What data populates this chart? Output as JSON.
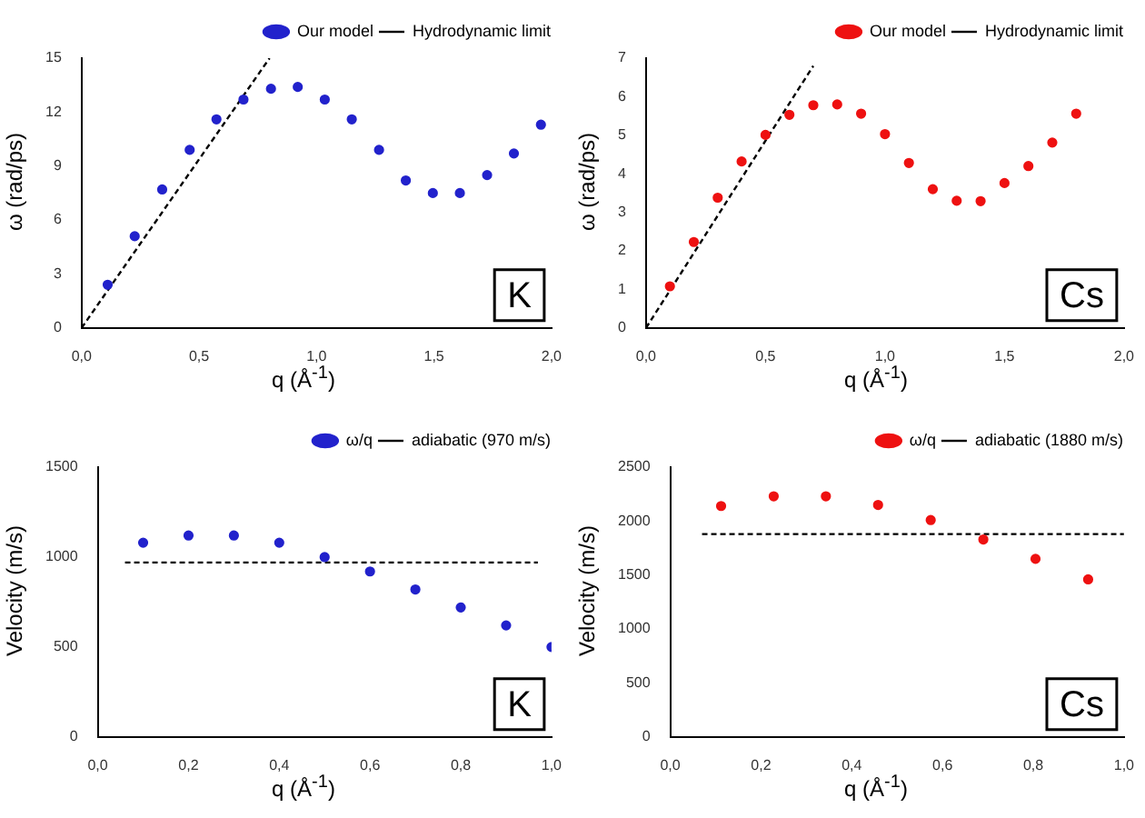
{
  "chart_data": [
    {
      "type": "scatter",
      "xlabel": "q (Å$^{-1}$)",
      "ylabel": "ω (rad/ps)",
      "annotations": [
        "K"
      ],
      "legend": "top right",
      "marker": "circle",
      "xlim": [
        0,
        2
      ],
      "ylim": [
        0,
        15
      ],
      "xticks": [
        {
          "value": 0,
          "label": "0,0"
        },
        {
          "value": 0.5,
          "label": "0,5"
        },
        {
          "value": 1,
          "label": "1,0"
        },
        {
          "value": 1.5,
          "label": "1,5"
        },
        {
          "value": 2,
          "label": "2,0"
        }
      ],
      "yticks": [
        0,
        3,
        6,
        9,
        12,
        15
      ],
      "series": [
        {
          "name": "Our model",
          "color": "#2222cc",
          "x": [
            0.111,
            0.226,
            0.343,
            0.46,
            0.574,
            0.689,
            0.806,
            0.92,
            1.035,
            1.15,
            1.266,
            1.38,
            1.495,
            1.61,
            1.726,
            1.84,
            1.955
          ],
          "values": [
            2.4,
            5.1,
            7.7,
            9.9,
            11.6,
            12.7,
            13.3,
            13.4,
            12.7,
            11.6,
            9.9,
            8.2,
            7.5,
            7.5,
            8.5,
            9.7,
            11.3
          ]
        },
        {
          "name": "Hydrodynamic limit",
          "type": "line",
          "line_style": "dashed",
          "marker": "none",
          "color": "#000000",
          "x": [
            0,
            0.8
          ],
          "values": [
            0,
            15
          ]
        }
      ]
    },
    {
      "type": "scatter",
      "xlabel": "q (Å$^{-1}$)",
      "ylabel": "ω (rad/ps)",
      "annotations": [
        "Cs"
      ],
      "legend": "top right",
      "marker": "circle",
      "xlim": [
        0,
        2
      ],
      "ylim": [
        0,
        7
      ],
      "xticks": [
        {
          "value": 0,
          "label": "0,0"
        },
        {
          "value": 0.5,
          "label": "0,5"
        },
        {
          "value": 1,
          "label": "1,0"
        },
        {
          "value": 1.5,
          "label": "1,5"
        },
        {
          "value": 2,
          "label": "2,0"
        }
      ],
      "yticks": [
        0,
        1,
        2,
        3,
        4,
        5,
        6,
        7
      ],
      "series": [
        {
          "name": "Our model",
          "color": "#ee1111",
          "x": [
            0.1,
            0.2,
            0.3,
            0.4,
            0.5,
            0.6,
            0.7,
            0.8,
            0.9,
            1.0,
            1.1,
            1.2,
            1.3,
            1.4,
            1.5,
            1.6,
            1.7,
            1.8
          ],
          "values": [
            1.08,
            2.23,
            3.38,
            4.32,
            5.01,
            5.53,
            5.78,
            5.8,
            5.56,
            5.03,
            4.28,
            3.6,
            3.3,
            3.29,
            3.76,
            4.2,
            4.81,
            5.56
          ]
        },
        {
          "name": "Hydrodynamic limit",
          "type": "line",
          "line_style": "dashed",
          "marker": "none",
          "color": "#000000",
          "x": [
            0,
            0.7
          ],
          "values": [
            0,
            6.8
          ]
        }
      ]
    },
    {
      "type": "scatter",
      "xlabel": "q (Å$^{-1}$)",
      "ylabel": "Velocity (m/s)",
      "annotations": [
        "K"
      ],
      "legend": "top right",
      "marker": "circle",
      "xlim": [
        0,
        1
      ],
      "ylim": [
        0,
        1500
      ],
      "xticks": [
        {
          "value": 0,
          "label": "0,0"
        },
        {
          "value": 0.2,
          "label": "0,2"
        },
        {
          "value": 0.4,
          "label": "0,4"
        },
        {
          "value": 0.6,
          "label": "0,6"
        },
        {
          "value": 0.8,
          "label": "0,8"
        },
        {
          "value": 1,
          "label": "1,0"
        }
      ],
      "yticks": [
        0,
        500,
        1000,
        1500
      ],
      "series": [
        {
          "name": "ω/q",
          "color": "#2222cc",
          "x": [
            0.1,
            0.2,
            0.3,
            0.4,
            0.5,
            0.6,
            0.7,
            0.8,
            0.9,
            1.0
          ],
          "values": [
            1080,
            1120,
            1120,
            1080,
            1000,
            920,
            820,
            720,
            620,
            500
          ]
        },
        {
          "name": "adiabatic (970 m/s)",
          "type": "line",
          "line_style": "dashed",
          "marker": "none",
          "color": "#000000",
          "x": [
            0.06,
            0.97
          ],
          "values": [
            970,
            970
          ]
        }
      ]
    },
    {
      "type": "scatter",
      "xlabel": "q (Å$^{-1}$)",
      "ylabel": "Velocity (m/s)",
      "annotations": [
        "Cs"
      ],
      "legend": "top right",
      "marker": "circle",
      "xlim": [
        0,
        1
      ],
      "ylim": [
        0,
        2500
      ],
      "xticks": [
        {
          "value": 0,
          "label": "0,0"
        },
        {
          "value": 0.2,
          "label": "0,2"
        },
        {
          "value": 0.4,
          "label": "0,4"
        },
        {
          "value": 0.6,
          "label": "0,6"
        },
        {
          "value": 0.8,
          "label": "0,8"
        },
        {
          "value": 1,
          "label": "1,0"
        }
      ],
      "yticks": [
        0,
        500,
        1000,
        1500,
        2000,
        2500
      ],
      "series": [
        {
          "name": "ω/q",
          "color": "#ee1111",
          "x": [
            0.112,
            0.228,
            0.343,
            0.458,
            0.574,
            0.69,
            0.805,
            0.921
          ],
          "values": [
            2140,
            2230,
            2230,
            2150,
            2010,
            1830,
            1650,
            1460
          ]
        },
        {
          "name": "adiabatic (1880 m/s)",
          "type": "line",
          "line_style": "dashed",
          "marker": "none",
          "color": "#000000",
          "x": [
            0.07,
            1.0
          ],
          "values": [
            1880,
            1880
          ]
        }
      ]
    }
  ]
}
